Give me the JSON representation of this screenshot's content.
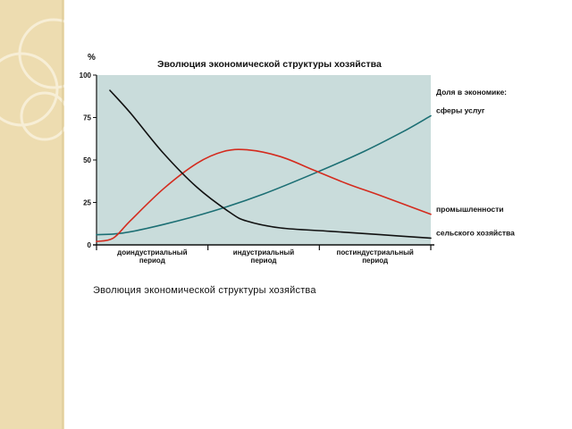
{
  "caption": "Эволюция экономической структуры хозяйства",
  "decoration": {
    "strip_color": "#eddcb0",
    "ring_color": "#f7eed6"
  },
  "chart_data": {
    "type": "line",
    "title": "Эволюция экономической структуры хозяйства",
    "ylabel": "%",
    "ylim": [
      0,
      100
    ],
    "yticks": [
      "0",
      "25",
      "50",
      "75",
      "100"
    ],
    "xlim": [
      0,
      1
    ],
    "plot_background": "#c9dcdb",
    "periods": [
      "доиндустриальный период",
      "индустриальный период",
      "постиндустриальный период"
    ],
    "legend_title": "Доля в экономике:",
    "series": [
      {
        "name": "сферы услуг",
        "color": "#1c6f74",
        "x": [
          0,
          0.08,
          0.2,
          0.35,
          0.5,
          0.65,
          0.8,
          0.92,
          1.0
        ],
        "values": [
          6,
          7,
          12,
          20,
          30,
          42,
          55,
          67,
          76
        ]
      },
      {
        "name": "промышленности",
        "color": "#d42b1e",
        "x": [
          0,
          0.05,
          0.1,
          0.2,
          0.3,
          0.38,
          0.45,
          0.55,
          0.65,
          0.75,
          0.85,
          1.0
        ],
        "values": [
          2,
          4,
          14,
          33,
          48,
          55,
          56,
          52,
          44,
          36,
          29,
          18
        ]
      },
      {
        "name": "сельского хозяйства",
        "color": "#111111",
        "x": [
          0.04,
          0.1,
          0.2,
          0.3,
          0.4,
          0.45,
          0.55,
          0.7,
          0.85,
          1.0
        ],
        "values": [
          91,
          78,
          54,
          34,
          19,
          14,
          10,
          8,
          6,
          4
        ]
      }
    ]
  }
}
